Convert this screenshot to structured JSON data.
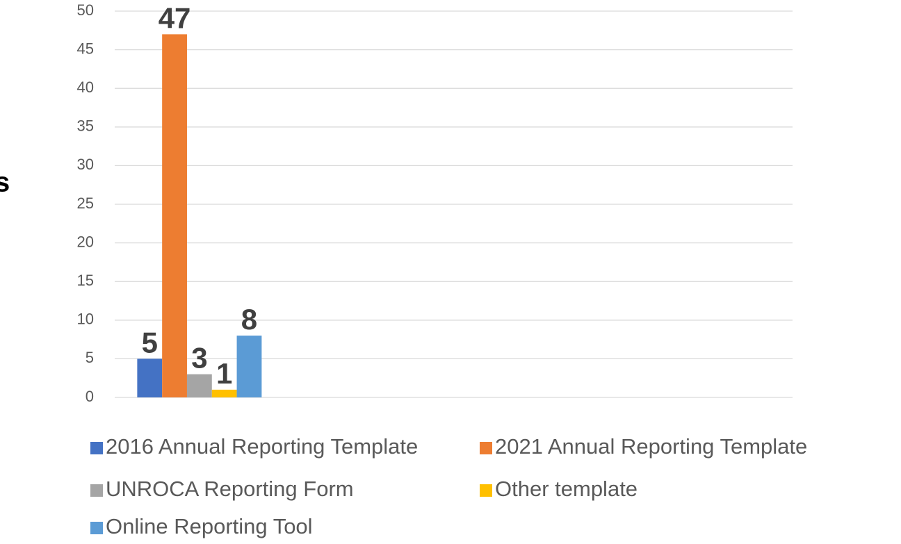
{
  "chart_data": {
    "type": "bar",
    "ylabel": "s",
    "categories": [
      null
    ],
    "series": [
      {
        "name": "2016 Annual Reporting Template",
        "color": "#4472c4",
        "values": [
          5
        ]
      },
      {
        "name": "2021 Annual Reporting Template",
        "color": "#ed7d31",
        "values": [
          47
        ]
      },
      {
        "name": "UNROCA Reporting Form",
        "color": "#a5a5a5",
        "values": [
          3
        ]
      },
      {
        "name": "Other template",
        "color": "#ffc000",
        "values": [
          1
        ]
      },
      {
        "name": "Online Reporting Tool",
        "color": "#5b9bd5",
        "values": [
          8
        ]
      }
    ],
    "ylim": [
      0,
      50
    ],
    "yticks": [
      0,
      5,
      10,
      15,
      20,
      25,
      30,
      35,
      40,
      45,
      50
    ],
    "grid": true,
    "legend": "bottom"
  }
}
